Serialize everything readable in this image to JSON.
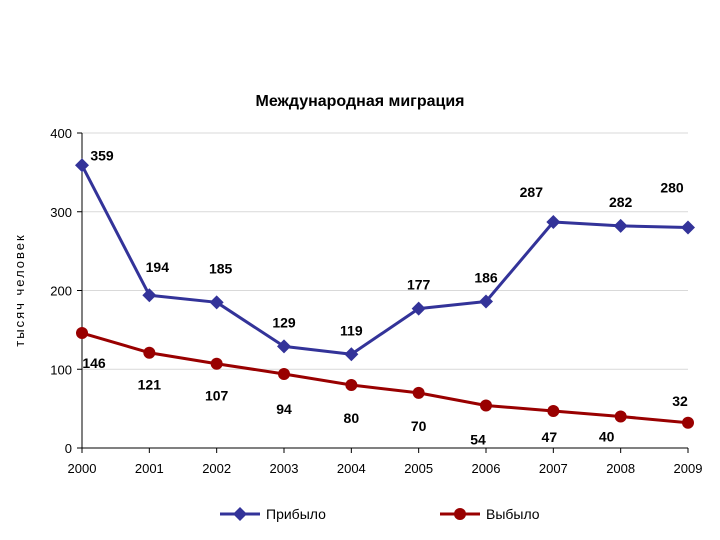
{
  "chart_data": {
    "type": "line",
    "title": "Международная миграция",
    "xlabel": "",
    "ylabel": "тысяч человек",
    "categories": [
      "2000",
      "2001",
      "2002",
      "2003",
      "2004",
      "2005",
      "2006",
      "2007",
      "2008",
      "2009"
    ],
    "ylim": [
      0,
      400
    ],
    "yticks": [
      0,
      100,
      200,
      300,
      400
    ],
    "grid": true,
    "legend": "bottom",
    "series": [
      {
        "name": "Прибыло",
        "values": [
          359,
          194,
          185,
          129,
          119,
          177,
          186,
          287,
          282,
          280
        ],
        "color": "#333399",
        "marker": "diamond",
        "labels": [
          "359",
          "194",
          "185",
          "129",
          "119",
          "177",
          "186",
          "287",
          "282",
          "280"
        ]
      },
      {
        "name": "Выбыло",
        "values": [
          146,
          121,
          107,
          94,
          80,
          70,
          54,
          47,
          40,
          32
        ],
        "color": "#990000",
        "marker": "circle",
        "labels": [
          "146",
          "121",
          "107",
          "94",
          "80",
          "70",
          "54",
          "47",
          "40",
          "32"
        ]
      }
    ]
  }
}
